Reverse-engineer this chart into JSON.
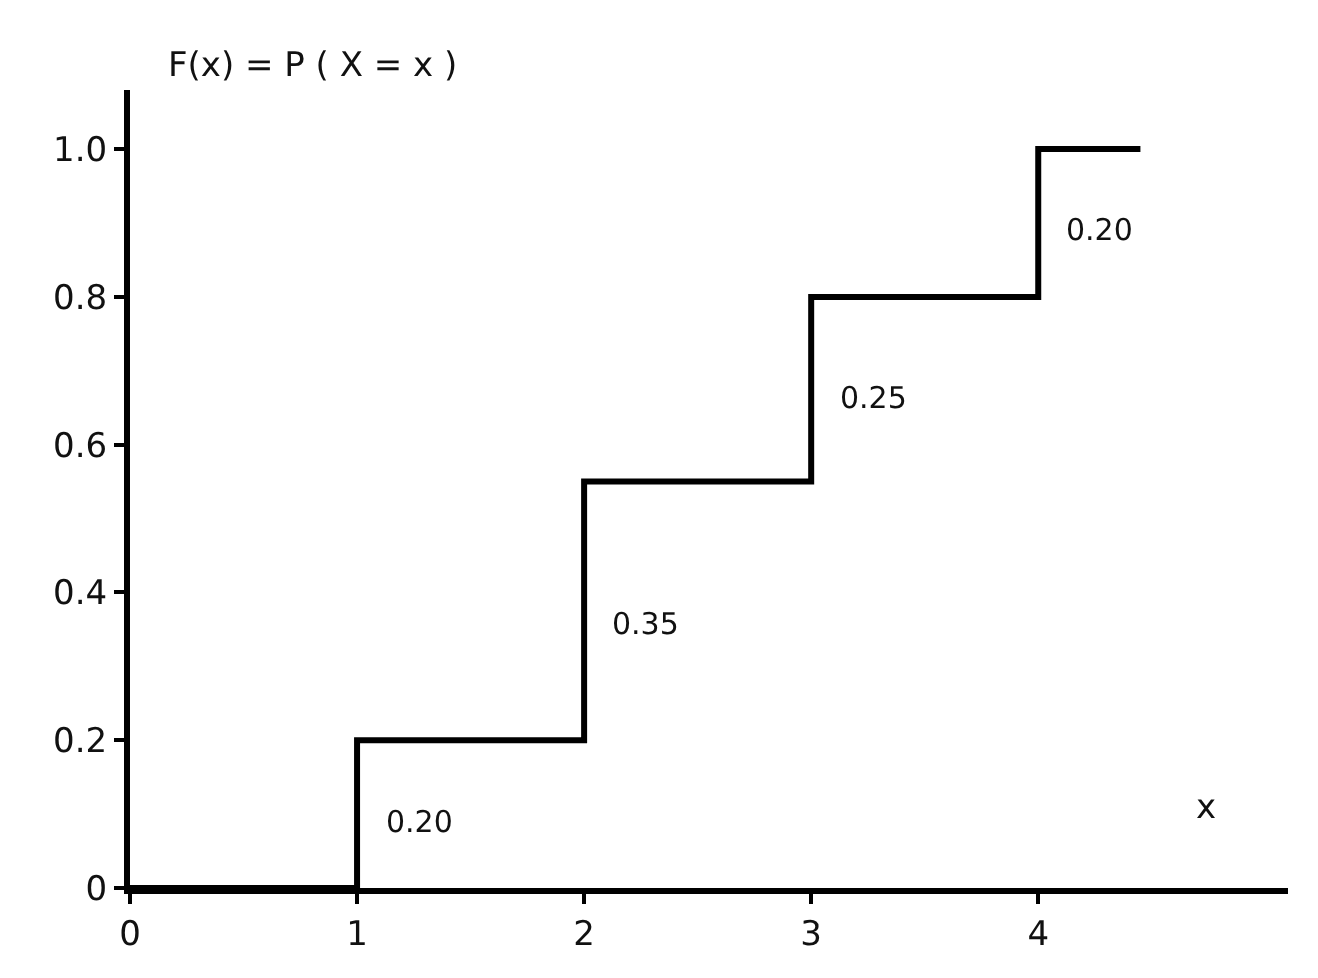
{
  "chart_data": {
    "type": "step",
    "ylabel": "F(x) = P ( X = x )",
    "xlabel": "x",
    "x": [
      0,
      1,
      2,
      3,
      4,
      4.45
    ],
    "values": [
      0,
      0.2,
      0.55,
      0.8,
      1.0,
      1.0
    ],
    "color": "#000000",
    "xlim": [
      0,
      5.1
    ],
    "ylim": [
      0,
      1.08
    ],
    "xticks": [
      0,
      1,
      2,
      3,
      4
    ],
    "yticks": [
      0,
      0.2,
      0.4,
      0.6,
      0.8,
      {
        "value": 1,
        "label": "1.0"
      }
    ],
    "annotations": [
      "0.20",
      "0.35",
      "0.25",
      "0.20"
    ],
    "legend": false,
    "marker": "none",
    "line_style": "solid"
  }
}
